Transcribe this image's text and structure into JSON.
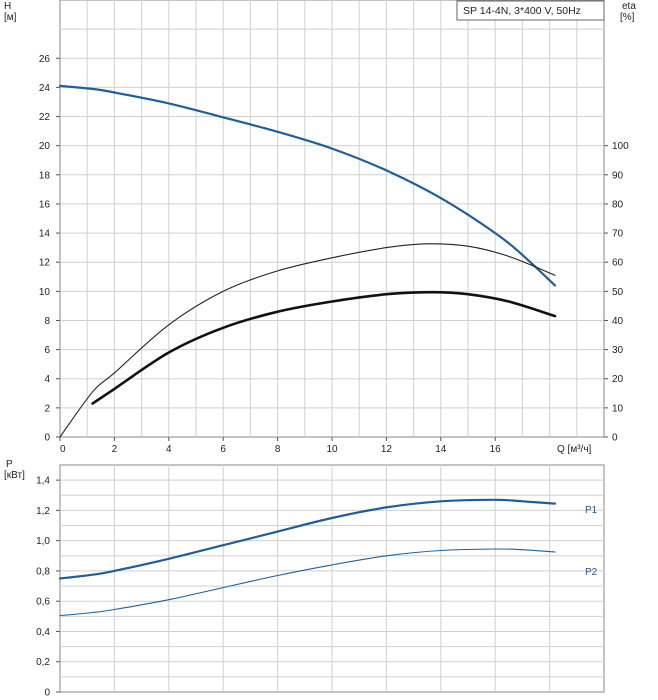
{
  "legend_text": "SP 14-4N, 3*400 V, 50Hz",
  "colors": {
    "head": "#1f5f99",
    "eta": "#222222",
    "power": "#1f5f99",
    "grid": "#d0d0d0"
  },
  "chart_data": [
    {
      "type": "line",
      "title": "",
      "xlabel": "Q [м³/ч]",
      "xlim": [
        0,
        20
      ],
      "x_ticks": [
        "0",
        "2",
        "4",
        "6",
        "8",
        "10",
        "12",
        "14",
        "16"
      ],
      "ylabel": "H\n[м]",
      "ylim": [
        0,
        30
      ],
      "y_ticks": [
        "0",
        "2",
        "4",
        "6",
        "8",
        "10",
        "12",
        "14",
        "16",
        "18",
        "20",
        "22",
        "24",
        "26"
      ],
      "y2label": "eta\n[%]",
      "y2lim": [
        0,
        150
      ],
      "y2_ticks": [
        "0",
        "10",
        "20",
        "30",
        "40",
        "50",
        "60",
        "70",
        "80",
        "90",
        "100"
      ],
      "series": [
        {
          "axis": "y",
          "style": "head",
          "x": [
            0,
            1.2,
            2,
            4,
            6,
            8,
            10,
            12,
            14,
            16,
            17,
            18.2
          ],
          "y": [
            24.1,
            23.9,
            23.65,
            22.9,
            21.95,
            20.95,
            19.8,
            18.3,
            16.4,
            14,
            12.5,
            10.4
          ]
        },
        {
          "axis": "y2",
          "style": "eta-thin",
          "x": [
            0,
            1.2,
            2,
            4,
            6,
            8,
            10,
            12,
            13.5,
            15,
            16.5,
            18.2
          ],
          "y": [
            0,
            15.5,
            22,
            38.5,
            50,
            57,
            61.5,
            65,
            66.3,
            65.5,
            62,
            55.5
          ]
        },
        {
          "axis": "y2",
          "style": "eta-thick",
          "x": [
            1.2,
            2,
            4,
            6,
            8,
            10,
            12,
            13.7,
            15,
            16.5,
            18.2
          ],
          "y": [
            11.5,
            16.5,
            29,
            37.5,
            43,
            46.5,
            49,
            49.7,
            49,
            46.5,
            41.5
          ]
        }
      ]
    },
    {
      "type": "line",
      "title": "",
      "xlabel": "",
      "xlim": [
        0,
        20
      ],
      "ylabel": "P\n[кВт]",
      "ylim": [
        0,
        1.5
      ],
      "y_ticks": [
        "0",
        "0,2",
        "0,4",
        "0,6",
        "0,8",
        "1,0",
        "1,2",
        "1,4"
      ],
      "series": [
        {
          "name": "P1",
          "style": "power-thick",
          "x": [
            0,
            1.2,
            2,
            4,
            6,
            8,
            10,
            12,
            14,
            16,
            17,
            18.2
          ],
          "y": [
            0.75,
            0.775,
            0.8,
            0.88,
            0.97,
            1.06,
            1.15,
            1.22,
            1.26,
            1.27,
            1.26,
            1.245
          ]
        },
        {
          "name": "P2",
          "style": "power-thin",
          "x": [
            0,
            1.2,
            2,
            4,
            6,
            8,
            10,
            12,
            14,
            16,
            17,
            18.2
          ],
          "y": [
            0.505,
            0.525,
            0.545,
            0.61,
            0.69,
            0.77,
            0.84,
            0.9,
            0.935,
            0.945,
            0.94,
            0.925
          ]
        }
      ]
    }
  ]
}
